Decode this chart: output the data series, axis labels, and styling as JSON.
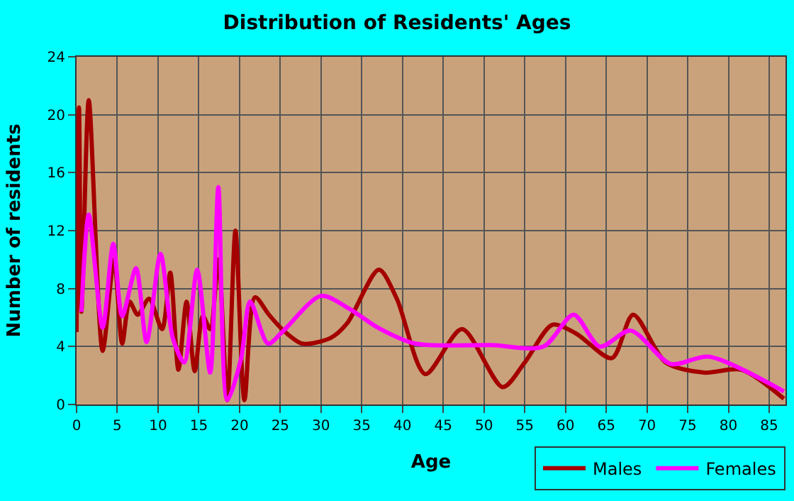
{
  "chart_data": {
    "type": "line",
    "title": "Distribution of Residents' Ages",
    "xlabel": "Age",
    "ylabel": "Number of residents",
    "xlim": [
      0,
      87
    ],
    "ylim": [
      0,
      24
    ],
    "xticks": [
      0,
      5,
      10,
      15,
      20,
      25,
      30,
      35,
      40,
      45,
      50,
      55,
      60,
      65,
      70,
      75,
      80,
      85
    ],
    "yticks": [
      0,
      4,
      8,
      12,
      16,
      20,
      24
    ],
    "grid": true,
    "legend": "bottom right",
    "marker": "none",
    "line_style": "solid",
    "series": [
      {
        "name": "Males",
        "color": "#a50000",
        "x": [
          0,
          0.3,
          0.6,
          1.5,
          3.2,
          4.6,
          5.6,
          6.5,
          7.5,
          8.9,
          10.5,
          11.5,
          12.5,
          13.5,
          14.5,
          15.5,
          16.4,
          17.4,
          18.5,
          19.5,
          20.6,
          21.9,
          23.6,
          25.4,
          27.7,
          31.2,
          33.2,
          37.1,
          39.3,
          42.8,
          47.3,
          52.3,
          55,
          58.4,
          61.3,
          65.7,
          68.3,
          72.3,
          77,
          81.6,
          86.8
        ],
        "values": [
          5,
          20.5,
          6.4,
          21,
          3.7,
          10,
          4.2,
          7.1,
          6.2,
          7.3,
          5.2,
          9.1,
          2.4,
          7.1,
          2.3,
          6.1,
          5.2,
          10,
          0.3,
          12,
          0.3,
          7.4,
          6.2,
          5.1,
          4.2,
          4.6,
          5.6,
          9.3,
          7.3,
          2.1,
          5.2,
          1.2,
          2.9,
          5.5,
          4.9,
          3.2,
          6.2,
          2.9,
          2.2,
          2.4,
          0.4
        ]
      },
      {
        "name": "Females",
        "color": "#ff00ff",
        "x": [
          0.6,
          1.5,
          3.2,
          4.5,
          5.6,
          7.3,
          8.6,
          10.3,
          11.8,
          13.2,
          14.8,
          16.4,
          17.4,
          18.5,
          20.2,
          21.3,
          23.5,
          25.4,
          30,
          33.5,
          37,
          41.6,
          50.9,
          57.3,
          61,
          64.2,
          68,
          72.9,
          77.6,
          86.8
        ],
        "values": [
          6.4,
          13.1,
          5.3,
          11.1,
          6.1,
          9.4,
          4.3,
          10.4,
          4.6,
          2.9,
          9.3,
          2.2,
          15,
          0.3,
          3.2,
          7.1,
          4.2,
          5.1,
          7.5,
          6.6,
          5.3,
          4.2,
          4.1,
          4.0,
          6.2,
          4.0,
          5.1,
          2.8,
          3.3,
          0.9
        ]
      }
    ]
  }
}
